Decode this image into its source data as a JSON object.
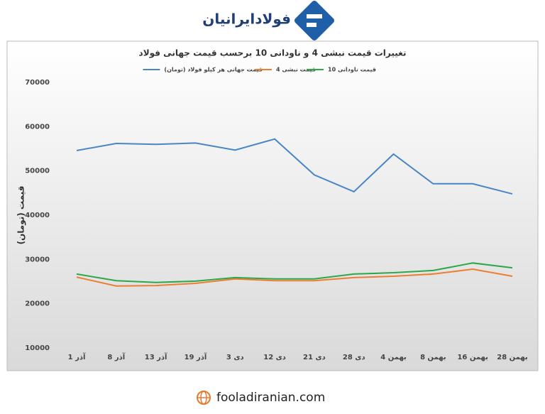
{
  "header": {
    "logo_text": "فولادایرانیان"
  },
  "footer": {
    "url": "fooladiranian.com"
  },
  "chart_data": {
    "type": "line",
    "title": "تغییرات قیمت نبشی 4 و ناودانی 10 برحسب قیمت جهانی فولاد",
    "y_label": "قیمت (تومان)",
    "categories": [
      "1 آذر",
      "8 آذر",
      "13 آذر",
      "19 آذر",
      "3 دی",
      "12 دی",
      "21 دی",
      "28 دی",
      "4 بهمن",
      "8 بهمن",
      "16 بهمن",
      "28 بهمن"
    ],
    "series": [
      {
        "name": "قیمت جهانی هر کیلو فولاد (تومان)",
        "color": "#4a86c5",
        "values": [
          54600,
          56200,
          56000,
          56300,
          54700,
          57200,
          49100,
          45300,
          53800,
          47100,
          47100,
          44800
        ]
      },
      {
        "name": "قیمت نبشی 4",
        "color": "#ed7d31",
        "values": [
          26000,
          24000,
          24100,
          24600,
          25600,
          25200,
          25200,
          25900,
          26200,
          26700,
          27800,
          26200
        ]
      },
      {
        "name": "قیمت ناودانی 10",
        "color": "#2ca84a",
        "values": [
          26700,
          25200,
          24800,
          25100,
          25900,
          25600,
          25600,
          26700,
          27000,
          27500,
          29200,
          28100
        ]
      }
    ],
    "ylim": [
      10000,
      70000
    ],
    "yticks": [
      10000,
      20000,
      30000,
      40000,
      50000,
      60000,
      70000
    ],
    "grid": false
  }
}
